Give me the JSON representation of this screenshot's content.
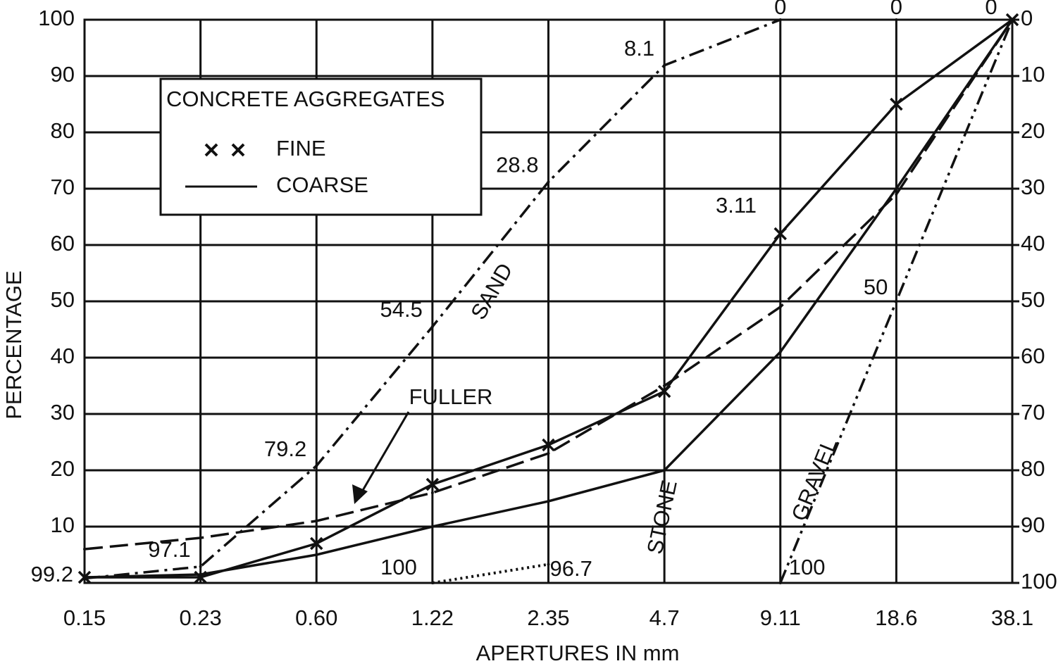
{
  "chart_data": {
    "type": "line",
    "x_label": "APERTURES IN mm",
    "y_label": "PERCENTAGE",
    "categories": [
      "0.15",
      "0.23",
      "0.60",
      "1.22",
      "2.35",
      "4.7",
      "9.11",
      "18.6",
      "38.1"
    ],
    "ylim": [
      0,
      100
    ],
    "yticks": [
      10,
      20,
      30,
      40,
      50,
      60,
      70,
      80,
      90,
      100
    ],
    "y2lim": [
      100,
      0
    ],
    "y2ticks": [
      0,
      10,
      20,
      30,
      40,
      50,
      60,
      70,
      80,
      90,
      100
    ],
    "grid": true,
    "legend_title": "CONCRETE AGGREGATES",
    "series": [
      {
        "name": "FINE",
        "color": "#111",
        "style": "solid",
        "marker": "x",
        "legend": true,
        "values": [
          1,
          1,
          7,
          17.5,
          24.5,
          34,
          62,
          85,
          100
        ]
      },
      {
        "name": "COARSE",
        "color": "#111",
        "style": "solid",
        "legend": true,
        "values": [
          1,
          1.5,
          5,
          10,
          14.5,
          20,
          41,
          70,
          100
        ]
      },
      {
        "name": "FULLER",
        "color": "#111",
        "style": "dashed",
        "legend": false,
        "values": [
          6,
          8,
          11,
          16,
          23,
          35,
          49,
          69,
          100
        ]
      },
      {
        "name": "SAND",
        "color": "#111",
        "style": "dashdot",
        "legend": false,
        "axis": "y2",
        "data_labels": true,
        "values": [
          99.2,
          97.1,
          79.2,
          54.5,
          28.8,
          8.1,
          0,
          null,
          null
        ]
      },
      {
        "name": "STONE",
        "color": "#111",
        "style": "dotted",
        "legend": false,
        "axis": "y2",
        "data_labels": true,
        "values": [
          null,
          null,
          null,
          100,
          96.7,
          null,
          null,
          0,
          null
        ]
      },
      {
        "name": "GRAVEL",
        "color": "#111",
        "style": "dashdotdot",
        "legend": false,
        "axis": "y2",
        "data_labels": true,
        "values": [
          null,
          null,
          null,
          null,
          null,
          null,
          100,
          50,
          0
        ]
      }
    ],
    "annotations": [
      "3.11"
    ]
  }
}
